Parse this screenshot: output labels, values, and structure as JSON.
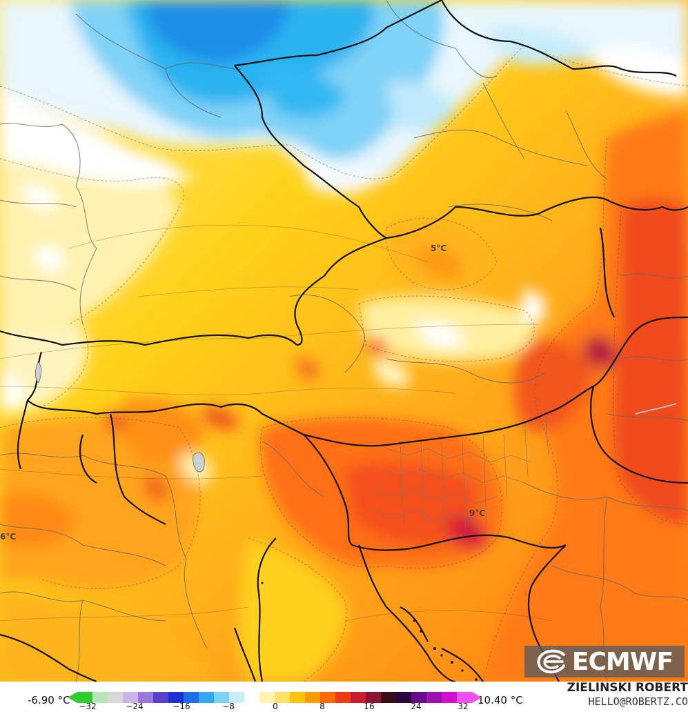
{
  "map": {
    "labels": [
      {
        "id": "label-5c",
        "text": "5°C"
      },
      {
        "id": "label-9c",
        "text": "9°C"
      },
      {
        "id": "label-6c",
        "text": "6°C"
      }
    ]
  },
  "logo": {
    "text": "ECMWF"
  },
  "legend": {
    "min_label": "-6.90 °C",
    "max_label": "10.40 °C",
    "ticks": [
      "−32",
      "−24",
      "−16",
      "−8",
      "0",
      "8",
      "16",
      "24",
      "32"
    ],
    "colors": [
      "#2ecc2e",
      "#b8e6b8",
      "#d8d8d8",
      "#c9b5e6",
      "#9b78e0",
      "#5a3fd0",
      "#1f2fd6",
      "#1f6be8",
      "#34a7f0",
      "#7dd0f6",
      "#c9ecfb",
      "#ffffff",
      "#fff3b0",
      "#ffe066",
      "#ffc40a",
      "#ff9a00",
      "#ff6a00",
      "#ee3a14",
      "#c81e2b",
      "#8e1232",
      "#3a0a18",
      "#2a0540",
      "#6a0a8a",
      "#a010b0",
      "#d010d0",
      "#f050f0"
    ]
  },
  "credit": {
    "name": "ZIELINSKI ROBERT",
    "email": "HELLO@ROBERTZ.CO"
  }
}
